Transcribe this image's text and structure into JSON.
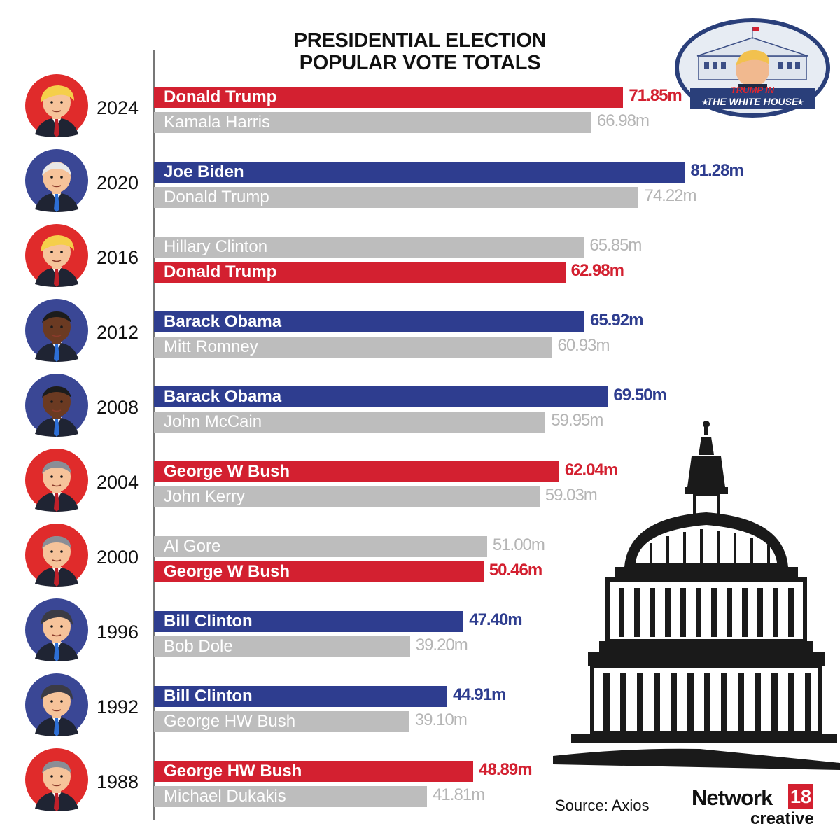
{
  "title": {
    "line1": "PRESIDENTIAL ELECTION",
    "line2": "POPULAR VOTE TOTALS"
  },
  "badge": {
    "line1": "TRUMP IN",
    "line2": "THE WHITE HOUSE"
  },
  "source": "Source: Axios",
  "brand": {
    "network": "Network",
    "number": "18",
    "sub": "creative"
  },
  "colors": {
    "republican": "#d32030",
    "democrat": "#2e3d8f",
    "loser": "#bdbdbd",
    "republican_bg": "#e02b2b",
    "democrat_bg": "#3a4795"
  },
  "chart_data": {
    "type": "bar",
    "orientation": "horizontal",
    "unit": "m",
    "title": "PRESIDENTIAL ELECTION POPULAR VOTE TOTALS",
    "xlim": [
      0,
      90
    ],
    "elections": [
      {
        "year": "2024",
        "portrait": "trump",
        "portrait_party": "republican",
        "bars": [
          {
            "name": "Donald Trump",
            "value": 71.85,
            "label": "71.85m",
            "party": "republican",
            "winner": true
          },
          {
            "name": "Kamala Harris",
            "value": 66.98,
            "label": "66.98m",
            "party": "democrat",
            "winner": false
          }
        ]
      },
      {
        "year": "2020",
        "portrait": "biden",
        "portrait_party": "democrat",
        "bars": [
          {
            "name": "Joe Biden",
            "value": 81.28,
            "label": "81.28m",
            "party": "democrat",
            "winner": true
          },
          {
            "name": "Donald Trump",
            "value": 74.22,
            "label": "74.22m",
            "party": "republican",
            "winner": false
          }
        ]
      },
      {
        "year": "2016",
        "portrait": "trump",
        "portrait_party": "republican",
        "bars": [
          {
            "name": "Hillary Clinton",
            "value": 65.85,
            "label": "65.85m",
            "party": "democrat",
            "winner": false
          },
          {
            "name": "Donald Trump",
            "value": 62.98,
            "label": "62.98m",
            "party": "republican",
            "winner": true
          }
        ]
      },
      {
        "year": "2012",
        "portrait": "obama",
        "portrait_party": "democrat",
        "bars": [
          {
            "name": "Barack Obama",
            "value": 65.92,
            "label": "65.92m",
            "party": "democrat",
            "winner": true
          },
          {
            "name": "Mitt Romney",
            "value": 60.93,
            "label": "60.93m",
            "party": "republican",
            "winner": false
          }
        ]
      },
      {
        "year": "2008",
        "portrait": "obama",
        "portrait_party": "democrat",
        "bars": [
          {
            "name": "Barack Obama",
            "value": 69.5,
            "label": "69.50m",
            "party": "democrat",
            "winner": true
          },
          {
            "name": "John McCain",
            "value": 59.95,
            "label": "59.95m",
            "party": "republican",
            "winner": false
          }
        ]
      },
      {
        "year": "2004",
        "portrait": "bush",
        "portrait_party": "republican",
        "bars": [
          {
            "name": "George W Bush",
            "value": 62.04,
            "label": "62.04m",
            "party": "republican",
            "winner": true
          },
          {
            "name": "John Kerry",
            "value": 59.03,
            "label": "59.03m",
            "party": "democrat",
            "winner": false
          }
        ]
      },
      {
        "year": "2000",
        "portrait": "bush",
        "portrait_party": "republican",
        "bars": [
          {
            "name": "Al Gore",
            "value": 51.0,
            "label": "51.00m",
            "party": "democrat",
            "winner": false
          },
          {
            "name": "George W Bush",
            "value": 50.46,
            "label": "50.46m",
            "party": "republican",
            "winner": true
          }
        ]
      },
      {
        "year": "1996",
        "portrait": "clinton",
        "portrait_party": "democrat",
        "bars": [
          {
            "name": "Bill Clinton",
            "value": 47.4,
            "label": "47.40m",
            "party": "democrat",
            "winner": true
          },
          {
            "name": "Bob Dole",
            "value": 39.2,
            "label": "39.20m",
            "party": "republican",
            "winner": false
          }
        ]
      },
      {
        "year": "1992",
        "portrait": "clinton",
        "portrait_party": "democrat",
        "bars": [
          {
            "name": "Bill Clinton",
            "value": 44.91,
            "label": "44.91m",
            "party": "democrat",
            "winner": true
          },
          {
            "name": "George HW Bush",
            "value": 39.1,
            "label": "39.10m",
            "party": "republican",
            "winner": false
          }
        ]
      },
      {
        "year": "1988",
        "portrait": "hwbush",
        "portrait_party": "republican",
        "bars": [
          {
            "name": "George HW Bush",
            "value": 48.89,
            "label": "48.89m",
            "party": "republican",
            "winner": true
          },
          {
            "name": "Michael Dukakis",
            "value": 41.81,
            "label": "41.81m",
            "party": "democrat",
            "winner": false
          }
        ]
      }
    ]
  }
}
